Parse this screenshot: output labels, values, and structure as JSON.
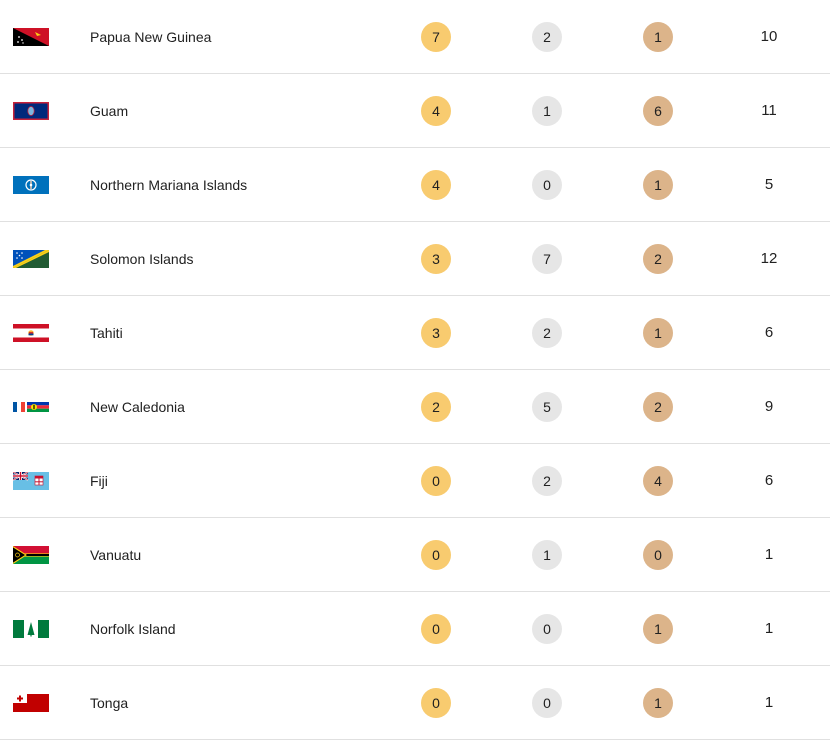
{
  "medal_table": {
    "rows": [
      {
        "country": "Papua New Guinea",
        "gold": "7",
        "silver": "2",
        "bronze": "1",
        "total": "10",
        "flag_icon": "papua-new-guinea-flag-icon"
      },
      {
        "country": "Guam",
        "gold": "4",
        "silver": "1",
        "bronze": "6",
        "total": "11",
        "flag_icon": "guam-flag-icon"
      },
      {
        "country": "Northern Mariana Islands",
        "gold": "4",
        "silver": "0",
        "bronze": "1",
        "total": "5",
        "flag_icon": "northern-mariana-islands-flag-icon"
      },
      {
        "country": "Solomon Islands",
        "gold": "3",
        "silver": "7",
        "bronze": "2",
        "total": "12",
        "flag_icon": "solomon-islands-flag-icon"
      },
      {
        "country": "Tahiti",
        "gold": "3",
        "silver": "2",
        "bronze": "1",
        "total": "6",
        "flag_icon": "tahiti-flag-icon"
      },
      {
        "country": "New Caledonia",
        "gold": "2",
        "silver": "5",
        "bronze": "2",
        "total": "9",
        "flag_icon": "new-caledonia-flag-icon"
      },
      {
        "country": "Fiji",
        "gold": "0",
        "silver": "2",
        "bronze": "4",
        "total": "6",
        "flag_icon": "fiji-flag-icon"
      },
      {
        "country": "Vanuatu",
        "gold": "0",
        "silver": "1",
        "bronze": "0",
        "total": "1",
        "flag_icon": "vanuatu-flag-icon"
      },
      {
        "country": "Norfolk Island",
        "gold": "0",
        "silver": "0",
        "bronze": "1",
        "total": "1",
        "flag_icon": "norfolk-island-flag-icon"
      },
      {
        "country": "Tonga",
        "gold": "0",
        "silver": "0",
        "bronze": "1",
        "total": "1",
        "flag_icon": "tonga-flag-icon"
      }
    ]
  },
  "colors": {
    "gold": "#f8cb6f",
    "silver": "#e6e6e6",
    "bronze": "#dcb48a",
    "divider": "#e0e0e0",
    "text": "#212121"
  }
}
